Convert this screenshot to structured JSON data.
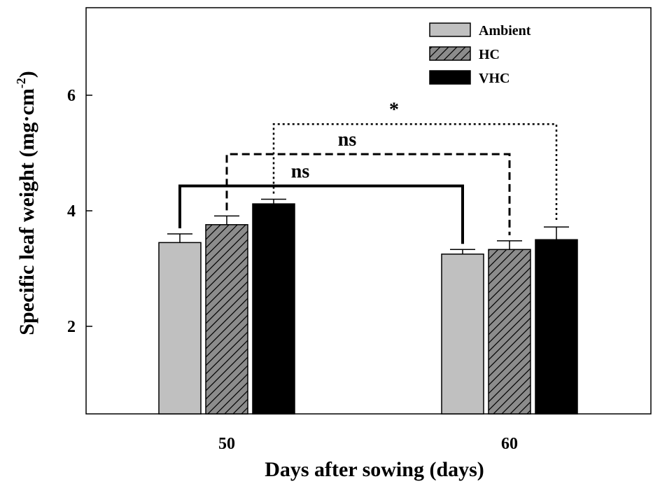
{
  "chart_data": {
    "type": "bar",
    "title": "",
    "xlabel": "Days after sowing (days)",
    "ylabel_main": "Specific leaf weight (mg·cm",
    "ylabel_sup": "-2",
    "ylabel_close": ")",
    "ylim": [
      0.5,
      7.5
    ],
    "yticks": [
      "2",
      "4",
      "6"
    ],
    "categories": [
      "50",
      "60"
    ],
    "series": [
      {
        "name": "Ambient",
        "values": [
          3.45,
          3.25
        ],
        "errors": [
          0.15,
          0.08
        ],
        "fill": "#c0c0c0",
        "pattern": "none"
      },
      {
        "name": "HC",
        "values": [
          3.76,
          3.33
        ],
        "errors": [
          0.15,
          0.15
        ],
        "fill": "#8c8c8c",
        "pattern": "hatch"
      },
      {
        "name": "VHC",
        "values": [
          4.12,
          3.5
        ],
        "errors": [
          0.08,
          0.22
        ],
        "fill": "#000000",
        "pattern": "none"
      }
    ],
    "legend_position": "top-right",
    "annotations": [
      {
        "text": "ns",
        "series": "Ambient",
        "bracket_y": 4.43,
        "style": "solid"
      },
      {
        "text": "ns",
        "series": "HC",
        "bracket_y": 4.98,
        "style": "dashed"
      },
      {
        "text": "*",
        "series": "VHC",
        "bracket_y": 5.5,
        "style": "dotted"
      }
    ]
  }
}
